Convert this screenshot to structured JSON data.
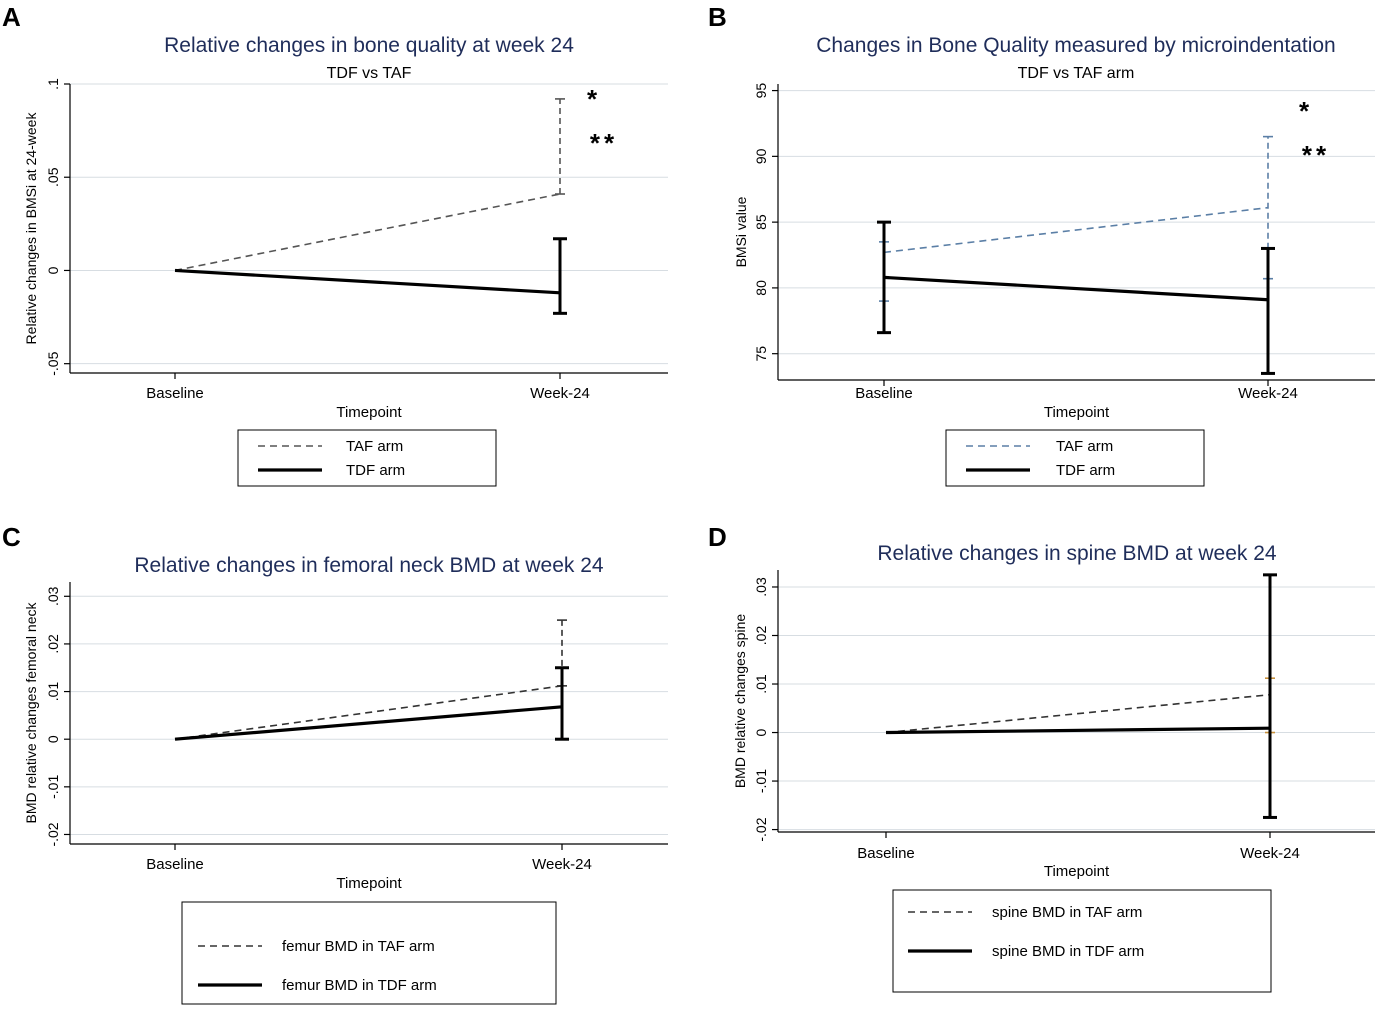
{
  "chart_data": [
    {
      "panel": "A",
      "type": "line",
      "title": "Relative changes in bone quality at week 24",
      "subtitle": "TDF vs TAF",
      "xlabel": "Timepoint",
      "ylabel": "Relative changes in BMSi at 24-week",
      "categories": [
        "Baseline",
        "Week-24"
      ],
      "ylim": [
        -0.055,
        0.1
      ],
      "yticks": [
        -0.05,
        0,
        0.05,
        0.1
      ],
      "ytick_labels": [
        "-.05",
        "0",
        ".05",
        ".1"
      ],
      "grid": true,
      "series": [
        {
          "name": "TAF arm",
          "style": "dashed",
          "color": "#555555",
          "values": [
            0,
            0.041
          ],
          "errorbars": [
            null,
            {
              "low": 0.041,
              "high": 0.092
            }
          ]
        },
        {
          "name": "TDF arm",
          "style": "solid",
          "color": "#000000",
          "values": [
            0,
            -0.012
          ],
          "errorbars": [
            null,
            {
              "low": -0.023,
              "high": 0.017
            }
          ]
        }
      ],
      "annotations": [
        "*",
        "**"
      ]
    },
    {
      "panel": "B",
      "type": "line",
      "title": "Changes in Bone Quality measured by microindentation",
      "subtitle": "TDF vs TAF arm",
      "xlabel": "Timepoint",
      "ylabel": "BMSi value",
      "categories": [
        "Baseline",
        "Week-24"
      ],
      "ylim": [
        73,
        95.5
      ],
      "yticks": [
        75,
        80,
        85,
        90,
        95
      ],
      "ytick_labels": [
        "75",
        "80",
        "85",
        "90",
        "95"
      ],
      "grid": true,
      "series": [
        {
          "name": "TAF arm",
          "style": "dashed",
          "color": "#5b7fa6",
          "values": [
            82.7,
            86.1
          ],
          "errorbars": [
            {
              "low": 79.0,
              "high": 83.5
            },
            {
              "low": 80.7,
              "high": 91.5
            }
          ]
        },
        {
          "name": "TDF arm",
          "style": "solid",
          "color": "#000000",
          "values": [
            80.8,
            79.1
          ],
          "errorbars": [
            {
              "low": 76.6,
              "high": 85.0
            },
            {
              "low": 73.5,
              "high": 83.0
            }
          ]
        }
      ],
      "annotations": [
        "*",
        "**"
      ]
    },
    {
      "panel": "C",
      "type": "line",
      "title": "Relative changes in femoral neck BMD at week 24",
      "xlabel": "Timepoint",
      "ylabel": "BMD relative changes femoral neck",
      "categories": [
        "Baseline",
        "Week-24"
      ],
      "ylim": [
        -0.022,
        0.033
      ],
      "yticks": [
        -0.02,
        -0.01,
        0,
        0.01,
        0.02,
        0.03
      ],
      "ytick_labels": [
        "-.02",
        "-.01",
        "0",
        ".01",
        ".02",
        ".03"
      ],
      "grid": true,
      "series": [
        {
          "name": "femur BMD in TAF arm",
          "style": "dashed",
          "color": "#333333",
          "values": [
            0,
            0.0112
          ],
          "errorbars": [
            null,
            {
              "low": 0.0112,
              "high": 0.025
            }
          ]
        },
        {
          "name": "femur BMD in TDF arm",
          "style": "solid",
          "color": "#000000",
          "values": [
            0,
            0.0068
          ],
          "errorbars": [
            null,
            {
              "low": 0,
              "high": 0.015
            }
          ]
        }
      ]
    },
    {
      "panel": "D",
      "type": "line",
      "title": "Relative changes in spine BMD at week 24",
      "xlabel": "Timepoint",
      "ylabel": "BMD relative changes spine",
      "categories": [
        "Baseline",
        "Week-24"
      ],
      "ylim": [
        -0.0205,
        0.0335
      ],
      "yticks": [
        -0.02,
        -0.01,
        0,
        0.01,
        0.02,
        0.03
      ],
      "ytick_labels": [
        "-.02",
        "-.01",
        "0",
        ".01",
        ".02",
        ".03"
      ],
      "grid": true,
      "series": [
        {
          "name": "spine BMD in TAF arm",
          "style": "dashed",
          "color": "#333333",
          "values": [
            0,
            0.0078
          ],
          "errorbars": [
            null,
            {
              "low": 0,
              "high": 0.0112
            }
          ]
        },
        {
          "name": "spine BMD in TDF arm",
          "style": "solid",
          "color": "#000000",
          "values": [
            0,
            0.0009
          ],
          "errorbars": [
            null,
            {
              "low": -0.0175,
              "high": 0.0325
            }
          ]
        }
      ]
    }
  ],
  "colors": {
    "title": "#1f2d5a",
    "grid": "#d7dde2",
    "axis": "#000000",
    "taf_errorbar_D": "#c8903a"
  }
}
